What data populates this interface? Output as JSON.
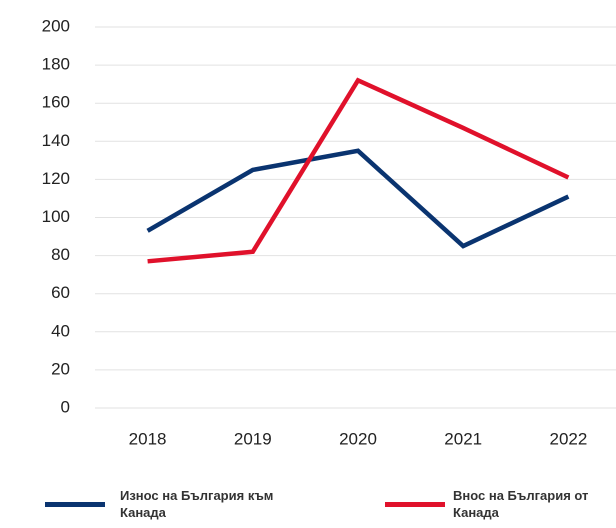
{
  "chart_data": {
    "type": "line",
    "categories": [
      "2018",
      "2019",
      "2020",
      "2021",
      "2022"
    ],
    "series": [
      {
        "name": "Износ на България към Канада",
        "color": "#0a3470",
        "values": [
          93,
          125,
          135,
          85,
          111
        ]
      },
      {
        "name": "Внос на България от Канада",
        "color": "#e0112b",
        "values": [
          77,
          82,
          172,
          147,
          121
        ]
      }
    ],
    "ylim": [
      0,
      200
    ],
    "yticks": [
      0,
      20,
      40,
      60,
      80,
      100,
      120,
      140,
      160,
      180,
      200
    ],
    "grid": true
  }
}
